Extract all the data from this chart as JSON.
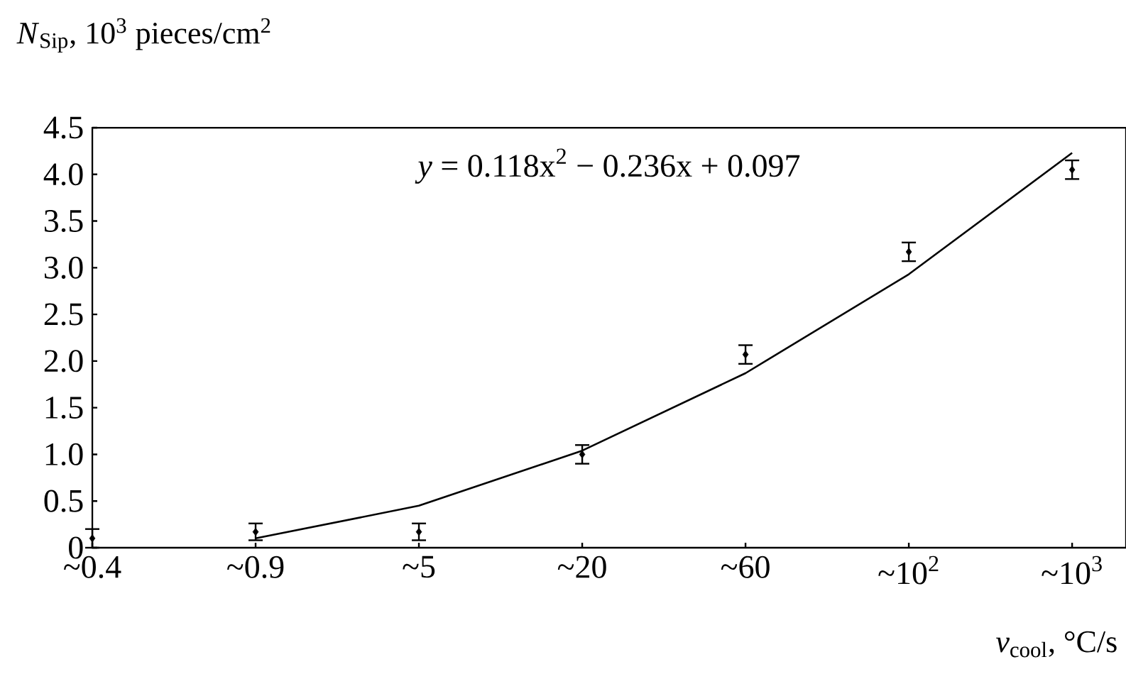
{
  "chart_data": {
    "type": "scatter",
    "xlabel": "*v*$_{cool}$, °C/s",
    "ylabel": "*N*$_{Sip}$, 10$^{3}$ pieces/cm$^{2}$",
    "categories": [
      "~0.4",
      "~0.9",
      "~5",
      "~20",
      "~60",
      "~10$^{2}$",
      "~10$^{3}$"
    ],
    "series": [
      {
        "color": "#000000",
        "marker": "diamond",
        "values": [
          0.1,
          0.17,
          0.17,
          1.0,
          2.07,
          3.17,
          4.05
        ],
        "errors": [
          0.1,
          0.09,
          0.09,
          0.1,
          0.1,
          0.1,
          0.1
        ]
      },
      {
        "type": "line",
        "color": "#000000",
        "marker": "none",
        "line_style": "solid",
        "values": [
          null,
          0.1,
          0.45,
          1.04,
          1.87,
          2.93,
          4.23
        ]
      }
    ],
    "annotations": [
      "*y* = 0.118x$^{2}$ − 0.236x + 0.097"
    ],
    "ylim": [
      0,
      4.5
    ],
    "yticks": [
      {
        "value": 0,
        "label": "0"
      },
      {
        "value": 0.5,
        "label": "0.5"
      },
      {
        "value": 1,
        "label": "1.0"
      },
      {
        "value": 1.5,
        "label": "1.5"
      },
      {
        "value": 2,
        "label": "2.0"
      },
      {
        "value": 2.5,
        "label": "2.5"
      },
      {
        "value": 3,
        "label": "3.0"
      },
      {
        "value": 3.5,
        "label": "3.5"
      },
      {
        "value": 4,
        "label": "4.0"
      },
      {
        "value": 4.5,
        "label": "4.5"
      }
    ],
    "grid": false
  }
}
